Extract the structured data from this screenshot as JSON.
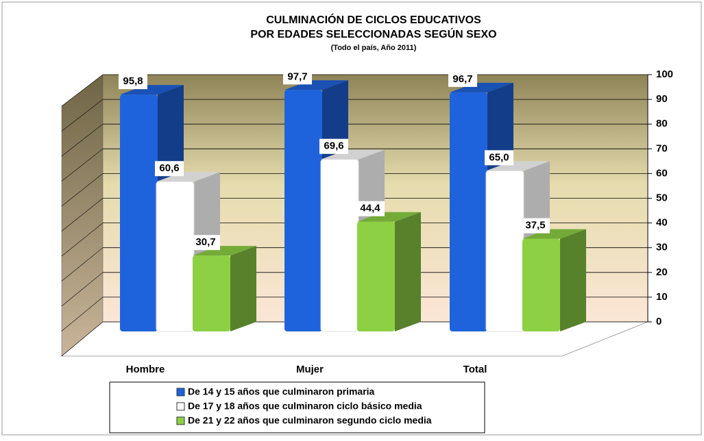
{
  "chart_data": {
    "type": "bar3d",
    "title": "CULMINACIÓN DE CICLOS EDUCATIVOS",
    "title_line2": "POR EDADES SELECCIONADAS SEGÚN SEXO",
    "subtitle": "(Todo el país, Año 2011)",
    "categories": [
      "Hombre",
      "Mujer",
      "Total"
    ],
    "series": [
      {
        "name": "De 14 y 15 años que culminaron primaria",
        "color": "#1f63dc",
        "values": [
          95.8,
          97.7,
          96.7
        ],
        "value_labels": [
          "95,8",
          "97,7",
          "96,7"
        ]
      },
      {
        "name": "De 17 y 18 años que culminaron ciclo básico media",
        "color": "#ffffff",
        "values": [
          60.6,
          69.6,
          65.0
        ],
        "value_labels": [
          "60,6",
          "69,6",
          "65,0"
        ]
      },
      {
        "name": "De 21 y 22 años que culminaron segundo ciclo media",
        "color": "#8dd044",
        "values": [
          30.7,
          44.4,
          37.5
        ],
        "value_labels": [
          "30,7",
          "44,4",
          "37,5"
        ]
      }
    ],
    "ylim": [
      0,
      100
    ],
    "yticks": [
      0,
      10,
      20,
      30,
      40,
      50,
      60,
      70,
      80,
      90,
      100
    ],
    "grid": true
  }
}
